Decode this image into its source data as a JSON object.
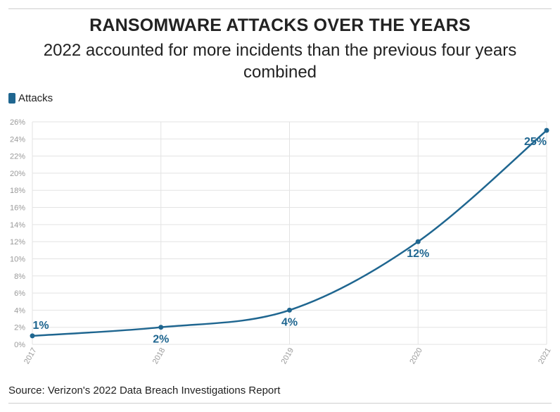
{
  "title": "RANSOMWARE ATTACKS OVER THE YEARS",
  "subtitle": "2022 accounted for more incidents than the previous four years combined",
  "source": "Source: Verizon's 2022 Data Breach Investigations Report",
  "colors": {
    "series": "#1f6690",
    "grid": "#e3e3e3",
    "tick": "#9a9a9a"
  },
  "chart_data": {
    "type": "line",
    "title": "RANSOMWARE ATTACKS OVER THE YEARS",
    "subtitle": "2022 accounted for more incidents than the previous four years combined",
    "categories": [
      "2017",
      "2018",
      "2019",
      "2020",
      "2021"
    ],
    "series": [
      {
        "name": "Attacks",
        "values": [
          1,
          2,
          4,
          12,
          25
        ],
        "labels": [
          "1%",
          "2%",
          "4%",
          "12%",
          "25%"
        ]
      }
    ],
    "ylim": [
      0,
      26
    ],
    "yticks": [
      "0%",
      "2%",
      "4%",
      "6%",
      "8%",
      "10%",
      "12%",
      "14%",
      "16%",
      "18%",
      "20%",
      "22%",
      "24%",
      "26%"
    ],
    "xlabel": "",
    "ylabel": "",
    "grid": true,
    "legend": "top-left"
  }
}
